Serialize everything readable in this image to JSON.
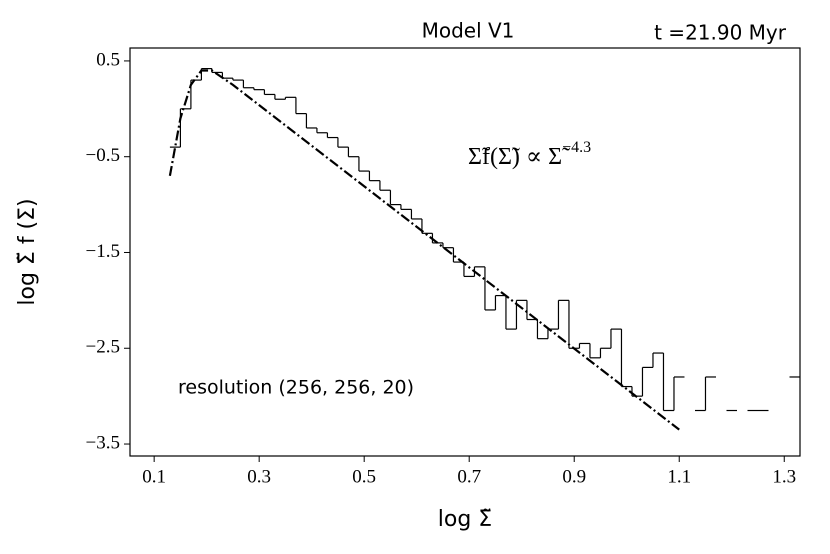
{
  "chart_data": {
    "type": "histogram",
    "title": "Model V1",
    "subtitle": "t =21.90 Myr",
    "xlabel": "log Σ̃",
    "ylabel": "log Σ̃ f (Σ)",
    "annotations": [
      {
        "text": "Σ̃f(Σ̃) ∝ Σ̃",
        "superscript": "−4.3"
      },
      {
        "text": "resolution (256, 256, 20)"
      }
    ],
    "xlim": [
      0.054,
      1.33
    ],
    "ylim": [
      -3.625,
      0.635
    ],
    "xticks": [
      0.1,
      0.3,
      0.5,
      0.7,
      0.9,
      1.1,
      1.3
    ],
    "yticks": [
      0.5,
      {
        "value": -0.5,
        "label": "−0.5"
      },
      {
        "value": -1.5,
        "label": "−1.5"
      },
      {
        "value": -2.5,
        "label": "−2.5"
      },
      {
        "value": -3.5,
        "label": "−3.5"
      }
    ],
    "series": [
      {
        "type": "histogram",
        "color": "#000000",
        "bins": [
          0.13,
          0.15,
          0.17,
          0.19,
          0.21,
          0.23,
          0.25,
          0.27,
          0.29,
          0.31,
          0.33,
          0.35,
          0.37,
          0.39,
          0.41,
          0.43,
          0.45,
          0.47,
          0.49,
          0.51,
          0.53,
          0.55,
          0.57,
          0.59,
          0.61,
          0.63,
          0.65,
          0.67,
          0.69,
          0.71,
          0.73,
          0.75,
          0.77,
          0.79,
          0.81,
          0.83,
          0.85,
          0.87,
          0.89,
          0.91,
          0.93,
          0.95,
          0.97,
          0.99,
          1.01,
          1.03,
          1.05,
          1.07,
          1.09,
          1.11,
          1.13,
          1.15,
          1.17,
          1.19,
          1.21,
          1.23,
          1.25,
          1.27,
          1.29,
          1.31,
          1.33
        ],
        "values": [
          -0.4,
          0.0,
          0.3,
          0.42,
          0.38,
          0.32,
          0.3,
          0.22,
          0.2,
          0.15,
          0.1,
          0.12,
          -0.05,
          -0.2,
          -0.25,
          -0.3,
          -0.4,
          -0.5,
          -0.65,
          -0.75,
          -0.85,
          -1.0,
          -1.05,
          -1.15,
          -1.3,
          -1.4,
          -1.45,
          -1.6,
          -1.75,
          -1.65,
          -2.1,
          -1.95,
          -2.3,
          -2.0,
          -2.2,
          -2.4,
          -2.3,
          -2.0,
          -2.5,
          -2.45,
          -2.6,
          -2.5,
          -2.3,
          -2.9,
          -3.0,
          -2.7,
          -2.55,
          -3.15,
          -2.8,
          null,
          -3.15,
          -2.8,
          null,
          -3.15,
          null,
          -3.15,
          -3.15,
          null,
          null,
          -2.8
        ]
      },
      {
        "type": "line",
        "color": "#000000",
        "dash": "dash-dot",
        "x": [
          0.13,
          0.15,
          0.17,
          0.19,
          0.21,
          0.25,
          1.1
        ],
        "values": [
          -0.7,
          -0.1,
          0.25,
          0.4,
          0.4,
          0.25,
          -3.35
        ]
      }
    ]
  }
}
